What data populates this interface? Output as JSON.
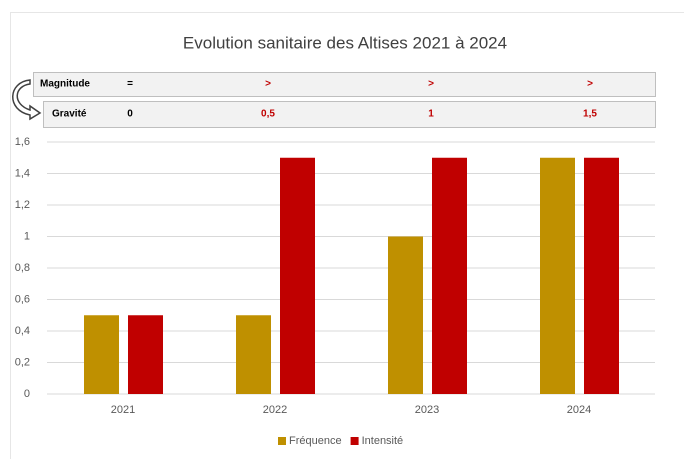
{
  "chart_data": {
    "type": "bar",
    "title": "Evolution sanitaire des Altises 2021 à 2024",
    "table": {
      "rows": [
        {
          "label": "Magnitude",
          "cells": [
            "=",
            ">",
            ">",
            ">"
          ]
        },
        {
          "label": "Gravité",
          "cells": [
            "0",
            "0,5",
            "1",
            "1,5"
          ]
        }
      ]
    },
    "categories": [
      "2021",
      "2022",
      "2023",
      "2024"
    ],
    "series": [
      {
        "name": "Fréquence",
        "color": "#bf9000",
        "values": [
          0.5,
          0.5,
          1,
          1.5
        ]
      },
      {
        "name": "Intensité",
        "color": "#c00000",
        "values": [
          0.5,
          1.5,
          1.5,
          1.5
        ]
      }
    ],
    "ylim": [
      0,
      1.6
    ],
    "yticks": [
      0,
      {
        "value": 0.2,
        "label": "0,2"
      },
      {
        "value": 0.4,
        "label": "0,4"
      },
      {
        "value": 0.6,
        "label": "0,6"
      },
      {
        "value": 0.8,
        "label": "0,8"
      },
      1,
      {
        "value": 1.2,
        "label": "1,2"
      },
      {
        "value": 1.4,
        "label": "1,4"
      },
      {
        "value": 1.6,
        "label": "1,6"
      }
    ],
    "grid": true,
    "legend": "bottom"
  }
}
